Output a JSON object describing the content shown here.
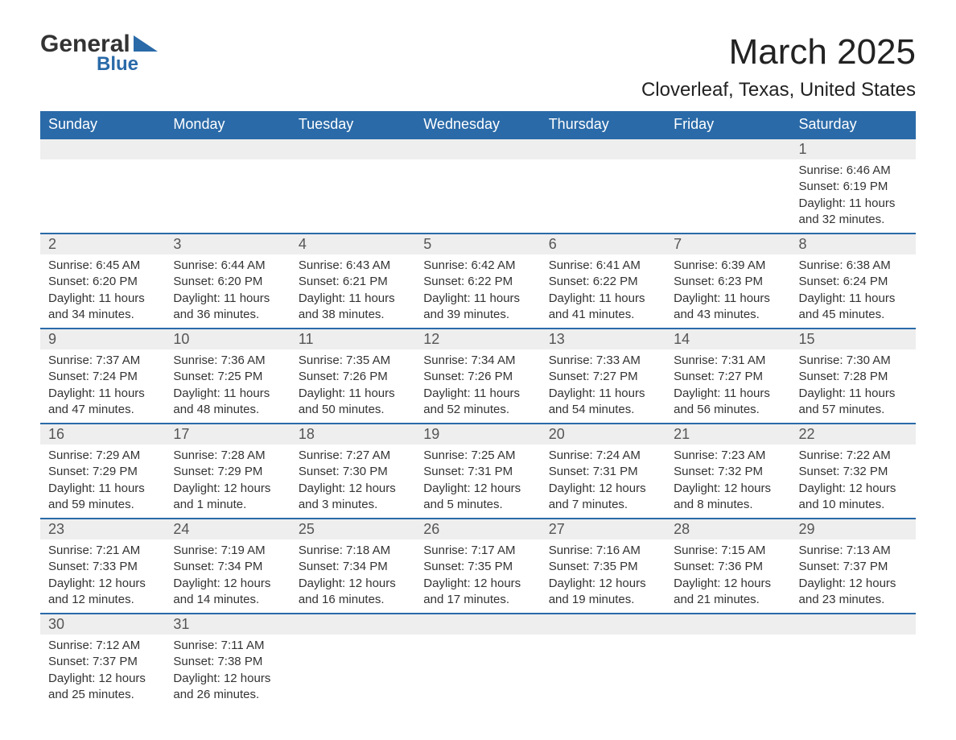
{
  "brand": {
    "name_top": "General",
    "name_bottom": "Blue",
    "triangle_color": "#2a6aa8"
  },
  "title": {
    "month": "March 2025",
    "location": "Cloverleaf, Texas, United States"
  },
  "colors": {
    "header_bg": "#2a6aa8",
    "header_text": "#ffffff",
    "daynum_bg": "#eeeeee",
    "border": "#2a6aa8",
    "text": "#333333",
    "bg": "#ffffff"
  },
  "columns": [
    "Sunday",
    "Monday",
    "Tuesday",
    "Wednesday",
    "Thursday",
    "Friday",
    "Saturday"
  ],
  "weeks": [
    [
      null,
      null,
      null,
      null,
      null,
      null,
      {
        "n": "1",
        "sunrise": "Sunrise: 6:46 AM",
        "sunset": "Sunset: 6:19 PM",
        "daylight": "Daylight: 11 hours and 32 minutes."
      }
    ],
    [
      {
        "n": "2",
        "sunrise": "Sunrise: 6:45 AM",
        "sunset": "Sunset: 6:20 PM",
        "daylight": "Daylight: 11 hours and 34 minutes."
      },
      {
        "n": "3",
        "sunrise": "Sunrise: 6:44 AM",
        "sunset": "Sunset: 6:20 PM",
        "daylight": "Daylight: 11 hours and 36 minutes."
      },
      {
        "n": "4",
        "sunrise": "Sunrise: 6:43 AM",
        "sunset": "Sunset: 6:21 PM",
        "daylight": "Daylight: 11 hours and 38 minutes."
      },
      {
        "n": "5",
        "sunrise": "Sunrise: 6:42 AM",
        "sunset": "Sunset: 6:22 PM",
        "daylight": "Daylight: 11 hours and 39 minutes."
      },
      {
        "n": "6",
        "sunrise": "Sunrise: 6:41 AM",
        "sunset": "Sunset: 6:22 PM",
        "daylight": "Daylight: 11 hours and 41 minutes."
      },
      {
        "n": "7",
        "sunrise": "Sunrise: 6:39 AM",
        "sunset": "Sunset: 6:23 PM",
        "daylight": "Daylight: 11 hours and 43 minutes."
      },
      {
        "n": "8",
        "sunrise": "Sunrise: 6:38 AM",
        "sunset": "Sunset: 6:24 PM",
        "daylight": "Daylight: 11 hours and 45 minutes."
      }
    ],
    [
      {
        "n": "9",
        "sunrise": "Sunrise: 7:37 AM",
        "sunset": "Sunset: 7:24 PM",
        "daylight": "Daylight: 11 hours and 47 minutes."
      },
      {
        "n": "10",
        "sunrise": "Sunrise: 7:36 AM",
        "sunset": "Sunset: 7:25 PM",
        "daylight": "Daylight: 11 hours and 48 minutes."
      },
      {
        "n": "11",
        "sunrise": "Sunrise: 7:35 AM",
        "sunset": "Sunset: 7:26 PM",
        "daylight": "Daylight: 11 hours and 50 minutes."
      },
      {
        "n": "12",
        "sunrise": "Sunrise: 7:34 AM",
        "sunset": "Sunset: 7:26 PM",
        "daylight": "Daylight: 11 hours and 52 minutes."
      },
      {
        "n": "13",
        "sunrise": "Sunrise: 7:33 AM",
        "sunset": "Sunset: 7:27 PM",
        "daylight": "Daylight: 11 hours and 54 minutes."
      },
      {
        "n": "14",
        "sunrise": "Sunrise: 7:31 AM",
        "sunset": "Sunset: 7:27 PM",
        "daylight": "Daylight: 11 hours and 56 minutes."
      },
      {
        "n": "15",
        "sunrise": "Sunrise: 7:30 AM",
        "sunset": "Sunset: 7:28 PM",
        "daylight": "Daylight: 11 hours and 57 minutes."
      }
    ],
    [
      {
        "n": "16",
        "sunrise": "Sunrise: 7:29 AM",
        "sunset": "Sunset: 7:29 PM",
        "daylight": "Daylight: 11 hours and 59 minutes."
      },
      {
        "n": "17",
        "sunrise": "Sunrise: 7:28 AM",
        "sunset": "Sunset: 7:29 PM",
        "daylight": "Daylight: 12 hours and 1 minute."
      },
      {
        "n": "18",
        "sunrise": "Sunrise: 7:27 AM",
        "sunset": "Sunset: 7:30 PM",
        "daylight": "Daylight: 12 hours and 3 minutes."
      },
      {
        "n": "19",
        "sunrise": "Sunrise: 7:25 AM",
        "sunset": "Sunset: 7:31 PM",
        "daylight": "Daylight: 12 hours and 5 minutes."
      },
      {
        "n": "20",
        "sunrise": "Sunrise: 7:24 AM",
        "sunset": "Sunset: 7:31 PM",
        "daylight": "Daylight: 12 hours and 7 minutes."
      },
      {
        "n": "21",
        "sunrise": "Sunrise: 7:23 AM",
        "sunset": "Sunset: 7:32 PM",
        "daylight": "Daylight: 12 hours and 8 minutes."
      },
      {
        "n": "22",
        "sunrise": "Sunrise: 7:22 AM",
        "sunset": "Sunset: 7:32 PM",
        "daylight": "Daylight: 12 hours and 10 minutes."
      }
    ],
    [
      {
        "n": "23",
        "sunrise": "Sunrise: 7:21 AM",
        "sunset": "Sunset: 7:33 PM",
        "daylight": "Daylight: 12 hours and 12 minutes."
      },
      {
        "n": "24",
        "sunrise": "Sunrise: 7:19 AM",
        "sunset": "Sunset: 7:34 PM",
        "daylight": "Daylight: 12 hours and 14 minutes."
      },
      {
        "n": "25",
        "sunrise": "Sunrise: 7:18 AM",
        "sunset": "Sunset: 7:34 PM",
        "daylight": "Daylight: 12 hours and 16 minutes."
      },
      {
        "n": "26",
        "sunrise": "Sunrise: 7:17 AM",
        "sunset": "Sunset: 7:35 PM",
        "daylight": "Daylight: 12 hours and 17 minutes."
      },
      {
        "n": "27",
        "sunrise": "Sunrise: 7:16 AM",
        "sunset": "Sunset: 7:35 PM",
        "daylight": "Daylight: 12 hours and 19 minutes."
      },
      {
        "n": "28",
        "sunrise": "Sunrise: 7:15 AM",
        "sunset": "Sunset: 7:36 PM",
        "daylight": "Daylight: 12 hours and 21 minutes."
      },
      {
        "n": "29",
        "sunrise": "Sunrise: 7:13 AM",
        "sunset": "Sunset: 7:37 PM",
        "daylight": "Daylight: 12 hours and 23 minutes."
      }
    ],
    [
      {
        "n": "30",
        "sunrise": "Sunrise: 7:12 AM",
        "sunset": "Sunset: 7:37 PM",
        "daylight": "Daylight: 12 hours and 25 minutes."
      },
      {
        "n": "31",
        "sunrise": "Sunrise: 7:11 AM",
        "sunset": "Sunset: 7:38 PM",
        "daylight": "Daylight: 12 hours and 26 minutes."
      },
      null,
      null,
      null,
      null,
      null
    ]
  ]
}
